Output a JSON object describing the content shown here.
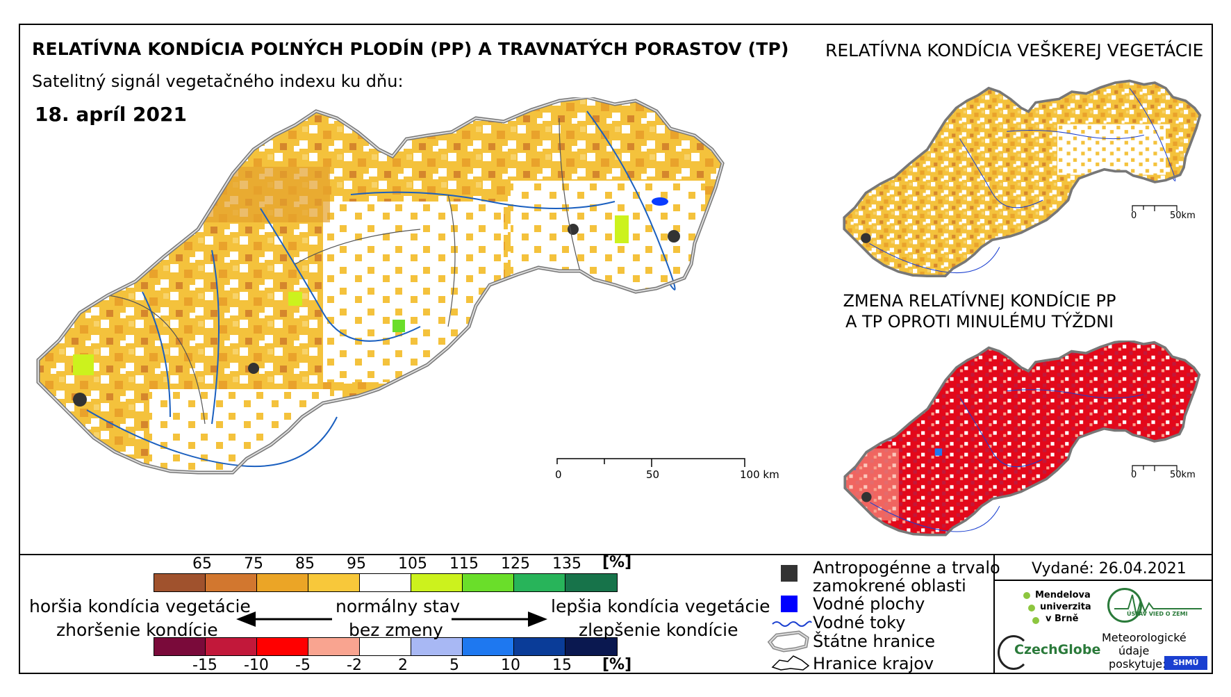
{
  "title": "RELATÍVNA KONDÍCIA POĽNÝCH PLODÍN (PP) A TRAVNATÝCH PORASTOV (TP)",
  "subtitle": "Satelitný signál vegetačného indexu ku dňu:",
  "date": "18. apríl 2021",
  "right_top_title": "RELATÍVNA KONDÍCIA VEŠKEREJ VEGETÁCIE",
  "right_bottom_title": "ZMENA RELATÍVNEJ KONDÍCIE PP A TP OPROTI MINULÉMU TÝŽDNI",
  "scale_main": {
    "s0": "0",
    "s1": "50",
    "s2": "100 km"
  },
  "scale_small": {
    "s0": "0",
    "s1": "50km"
  },
  "legend_condition": {
    "values": [
      "65",
      "75",
      "85",
      "95",
      "105",
      "115",
      "125",
      "135"
    ],
    "unit": "[%]",
    "colors": [
      "#a0522d",
      "#d2772f",
      "#eba526",
      "#f8c83a",
      "#ffffff",
      "#ccf21d",
      "#6ade2a",
      "#28b45a",
      "#17734a"
    ]
  },
  "legend_change": {
    "values": [
      "-15",
      "-10",
      "-5",
      "-2",
      "2",
      "5",
      "10",
      "15"
    ],
    "unit": "[%]",
    "colors": [
      "#7a0a3a",
      "#c2183a",
      "#ff0000",
      "#f9a490",
      "#ffffff",
      "#a8b8f4",
      "#1e78f0",
      "#0a3c98",
      "#0a1850"
    ]
  },
  "labels": {
    "worse1": "horšia kondícia vegetácie",
    "worse2": "zhoršenie kondície",
    "normal1": "normálny stav",
    "normal2": "bez zmeny",
    "better1": "lepšia kondícia vegetácie",
    "better2": "zlepšenie kondície"
  },
  "map_legend": {
    "anthro1": "Antropogénne a trvalo",
    "anthro2": "zamokrené oblasti",
    "water": "Vodné plochy",
    "rivers": "Vodné toky",
    "borders": "Štátne hranice",
    "regions": "Hranice krajov"
  },
  "issued": "Vydané: 26.04.2021",
  "logos": {
    "mendel1": "Mendelova",
    "mendel2": "univerzita",
    "mendel3": "v Brně",
    "czechglobe": "CzechGlobe",
    "ustav": "ÚSTAV VIED O ZEMI",
    "meteo1": "Meteorologické",
    "meteo2": "údaje",
    "meteo3": "poskytuje:",
    "shmu": "SHMÚ"
  }
}
